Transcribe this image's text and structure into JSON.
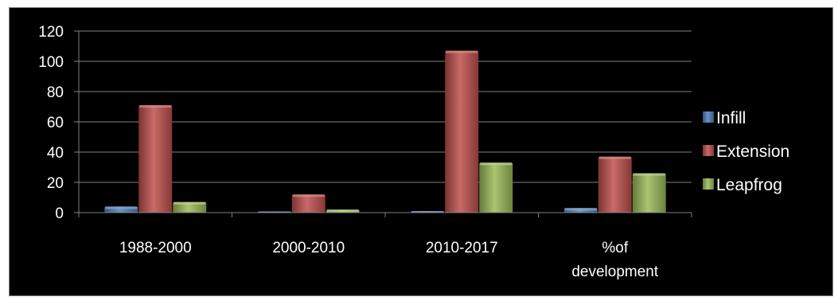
{
  "chart_data": {
    "type": "bar",
    "title": "",
    "xlabel": "",
    "ylabel": "",
    "categories": [
      [
        "1988-2000"
      ],
      [
        "2000-2010"
      ],
      [
        "2010-2017"
      ],
      [
        "%of",
        "development"
      ]
    ],
    "series": [
      {
        "name": "Infill",
        "values": [
          4,
          0.5,
          1,
          3
        ],
        "color": "#4f81bd"
      },
      {
        "name": "Extension",
        "values": [
          71,
          12,
          107,
          37
        ],
        "color": "#c0504d"
      },
      {
        "name": "Leapfrog",
        "values": [
          7,
          2,
          33,
          26
        ],
        "color": "#9bbb59"
      }
    ],
    "ylim": [
      0,
      120
    ],
    "yticks": [
      0,
      20,
      40,
      60,
      80,
      100,
      120
    ],
    "grid": true,
    "legend_position": "right",
    "background": "#000000",
    "gridline_color": "#808080",
    "text_color": "#ffffff"
  }
}
